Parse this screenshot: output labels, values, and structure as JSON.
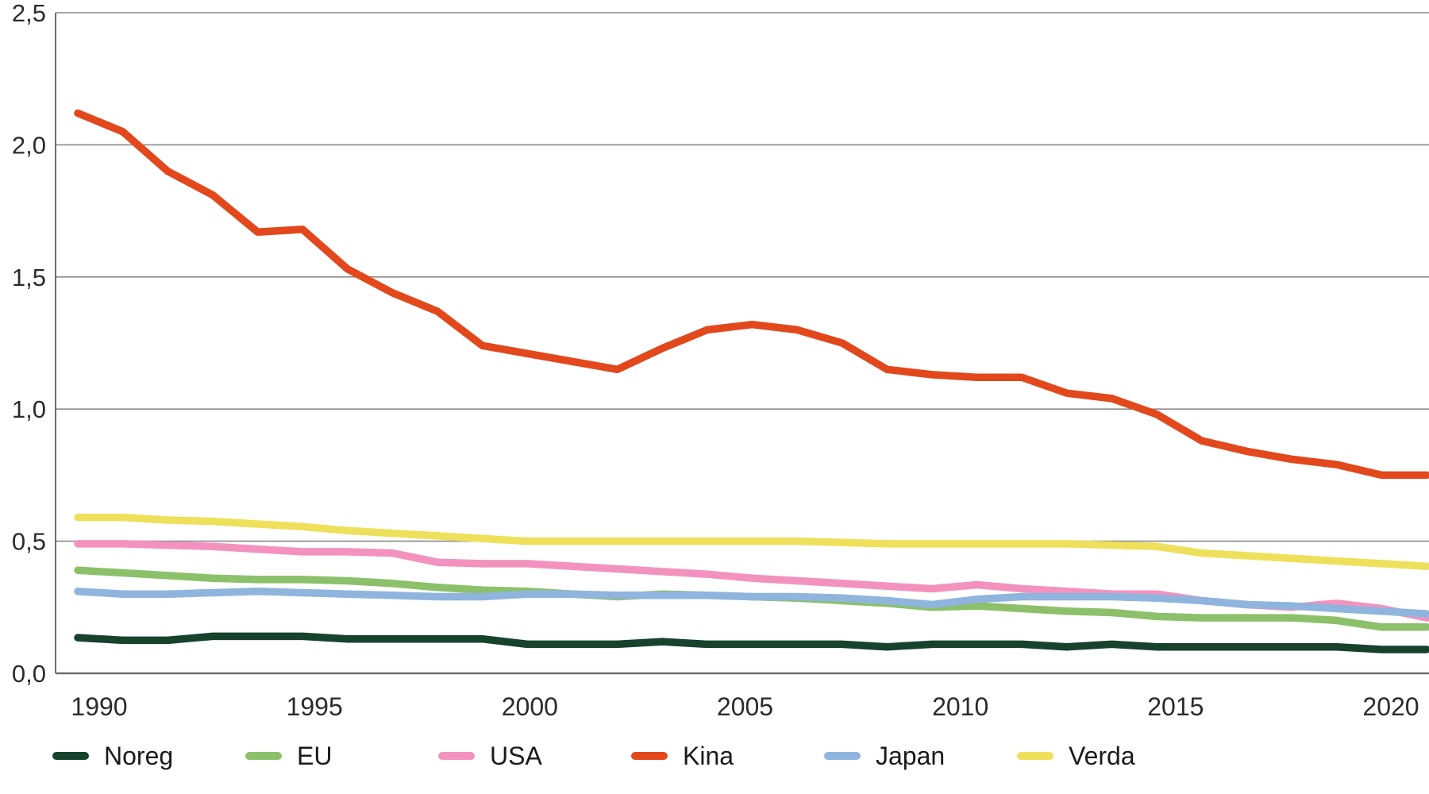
{
  "chart_data": {
    "type": "line",
    "title": "",
    "xlabel": "",
    "ylabel": "",
    "xlim": [
      1989.5,
      2021
    ],
    "ylim": [
      0,
      2.5
    ],
    "grid": "horizontal",
    "legend_position": "bottom",
    "decimal_separator": ",",
    "x": [
      1990,
      1991,
      1992,
      1993,
      1994,
      1995,
      1996,
      1997,
      1998,
      1999,
      2000,
      2001,
      2002,
      2003,
      2004,
      2005,
      2006,
      2007,
      2008,
      2009,
      2010,
      2011,
      2012,
      2013,
      2014,
      2015,
      2016,
      2017,
      2018,
      2019,
      2020
    ],
    "y_axis": {
      "ticks": [
        {
          "value": 0.0,
          "label": "0,0"
        },
        {
          "value": 0.5,
          "label": "0,5"
        },
        {
          "value": 1.0,
          "label": "1,0"
        },
        {
          "value": 1.5,
          "label": "1,5"
        },
        {
          "value": 2.0,
          "label": "2,0"
        },
        {
          "value": 2.5,
          "label": "2,5"
        }
      ]
    },
    "x_axis": {
      "ticks": [
        {
          "value": 1990,
          "label": "1990"
        },
        {
          "value": 1995,
          "label": "1995"
        },
        {
          "value": 2000,
          "label": "2000"
        },
        {
          "value": 2005,
          "label": "2005"
        },
        {
          "value": 2010,
          "label": "2010"
        },
        {
          "value": 2015,
          "label": "2015"
        },
        {
          "value": 2020,
          "label": "2020"
        }
      ]
    },
    "colors": {
      "gridline": "#8a8a8a",
      "axis": "#6e6e6e",
      "tick_text": "#2b2b2b"
    },
    "series": [
      {
        "name": "Noreg",
        "color": "#17422c",
        "values": [
          0.135,
          0.125,
          0.125,
          0.14,
          0.14,
          0.14,
          0.13,
          0.13,
          0.13,
          0.13,
          0.11,
          0.11,
          0.11,
          0.12,
          0.11,
          0.11,
          0.11,
          0.11,
          0.1,
          0.11,
          0.11,
          0.11,
          0.1,
          0.11,
          0.1,
          0.1,
          0.1,
          0.1,
          0.1,
          0.09,
          0.09
        ]
      },
      {
        "name": "EU",
        "color": "#8cc06a",
        "values": [
          0.39,
          0.38,
          0.37,
          0.36,
          0.355,
          0.355,
          0.35,
          0.34,
          0.325,
          0.315,
          0.31,
          0.3,
          0.29,
          0.3,
          0.295,
          0.29,
          0.285,
          0.275,
          0.265,
          0.25,
          0.255,
          0.245,
          0.235,
          0.23,
          0.215,
          0.21,
          0.21,
          0.21,
          0.2,
          0.175,
          0.175
        ]
      },
      {
        "name": "USA",
        "color": "#f392bf",
        "values": [
          0.49,
          0.49,
          0.485,
          0.48,
          0.47,
          0.46,
          0.46,
          0.455,
          0.42,
          0.415,
          0.415,
          0.405,
          0.395,
          0.385,
          0.375,
          0.36,
          0.35,
          0.34,
          0.33,
          0.32,
          0.335,
          0.32,
          0.31,
          0.3,
          0.3,
          0.275,
          0.26,
          0.25,
          0.265,
          0.245,
          0.21
        ]
      },
      {
        "name": "Kina",
        "color": "#e2481c",
        "values": [
          2.12,
          2.05,
          1.9,
          1.81,
          1.67,
          1.68,
          1.53,
          1.44,
          1.37,
          1.24,
          1.21,
          1.18,
          1.15,
          1.23,
          1.3,
          1.32,
          1.3,
          1.25,
          1.15,
          1.13,
          1.12,
          1.12,
          1.06,
          1.04,
          0.98,
          0.88,
          0.84,
          0.81,
          0.79,
          0.75,
          0.75
        ]
      },
      {
        "name": "Japan",
        "color": "#8fb5de",
        "values": [
          0.31,
          0.3,
          0.3,
          0.305,
          0.31,
          0.305,
          0.3,
          0.295,
          0.29,
          0.29,
          0.3,
          0.3,
          0.295,
          0.295,
          0.295,
          0.29,
          0.29,
          0.285,
          0.275,
          0.26,
          0.28,
          0.29,
          0.29,
          0.29,
          0.285,
          0.275,
          0.26,
          0.255,
          0.245,
          0.235,
          0.225
        ]
      },
      {
        "name": "Verda",
        "color": "#efe05b",
        "values": [
          0.59,
          0.59,
          0.58,
          0.575,
          0.565,
          0.555,
          0.54,
          0.53,
          0.52,
          0.51,
          0.5,
          0.5,
          0.5,
          0.5,
          0.5,
          0.5,
          0.5,
          0.495,
          0.49,
          0.49,
          0.49,
          0.49,
          0.49,
          0.485,
          0.48,
          0.455,
          0.445,
          0.435,
          0.425,
          0.415,
          0.405
        ]
      }
    ]
  }
}
